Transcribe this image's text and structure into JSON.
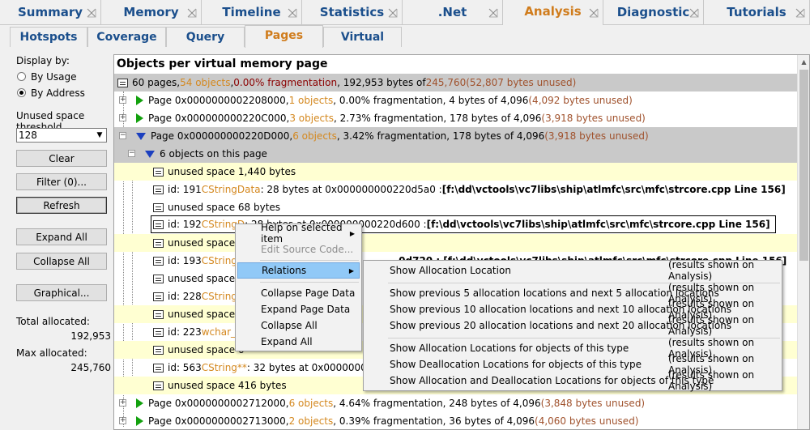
{
  "top_tabs": [
    {
      "label": "Summary",
      "active": false
    },
    {
      "label": "Memory",
      "active": false
    },
    {
      "label": "Timeline",
      "active": false
    },
    {
      "label": "Statistics",
      "active": false
    },
    {
      "label": ".Net",
      "active": false
    },
    {
      "label": "Analysis",
      "active": true
    },
    {
      "label": "Diagnostic",
      "active": false
    },
    {
      "label": "Tutorials",
      "active": false
    }
  ],
  "sub_tabs": [
    {
      "label": "Hotspots",
      "active": false
    },
    {
      "label": "Coverage",
      "active": false
    },
    {
      "label": "Query",
      "active": false
    },
    {
      "label": "Pages",
      "active": true
    },
    {
      "label": "Virtual",
      "active": false
    }
  ],
  "left": {
    "display_by_label": "Display by:",
    "radio_usage": "By Usage",
    "radio_address": "By Address",
    "selected_radio": "By Address",
    "threshold_label": "Unused space threshold",
    "threshold_value": "128",
    "clear_button": "Clear",
    "filter_button": "Filter (0)...",
    "refresh_button": "Refresh",
    "expand_all_button": "Expand All",
    "collapse_all_button": "Collapse All",
    "graphical_button": "Graphical...",
    "total_allocated_label": "Total allocated:",
    "total_allocated_value": "192,953",
    "max_allocated_label": "Max allocated:",
    "max_allocated_value": "245,760"
  },
  "main": {
    "title": "Objects per virtual memory page",
    "summary": {
      "a": "60 pages, ",
      "b": "54 objects",
      "c": ", ",
      "d": "0.00% fragmentation",
      "e": ", 192,953 bytes of ",
      "f": "245,760",
      "g": " (52,807 bytes unused)"
    },
    "page1": {
      "a": "Page 0x0000000002208000, ",
      "b": "1 objects",
      "c": ", 0.00% fragmentation, 4 bytes of 4,096 ",
      "d": "(4,092 bytes unused)"
    },
    "page2": {
      "a": "Page 0x000000000220C000, ",
      "b": "3 objects",
      "c": ", 2.73% fragmentation, 178 bytes of 4,096 ",
      "d": "(3,918 bytes unused)"
    },
    "page3": {
      "a": "Page 0x000000000220D000, ",
      "b": "6 objects",
      "c": ", 3.42% fragmentation, 178 bytes of 4,096 ",
      "d": "(3,918 bytes unused)"
    },
    "objects_on_page": "6 objects on this page",
    "r_unused1": "unused space 1,440 bytes",
    "r_id191": {
      "a": "id: 191 ",
      "b": "CStringData",
      "c": " : 28 bytes at 0x000000000220d5a0 : ",
      "d": "[f:\\dd\\vctools\\vc7libs\\ship\\atlmfc\\src\\mfc\\strcore.cpp Line 156]"
    },
    "r_unused68": "unused space 68 bytes",
    "r_id192": {
      "a": "id: 192 ",
      "b": "CStringD",
      "c": "  : 28 bytes at 0x000000000220d600 : ",
      "d": "[f:\\dd\\vctools\\vc7libs\\ship\\atlmfc\\src\\mfc\\strcore.cpp Line 156]"
    },
    "r_unused2": "unused space 2",
    "r_id193": {
      "a": "id: 193 ",
      "b": "CStringD",
      "c": "",
      "d": "0d720 : [f:\\dd\\vctools\\vc7libs\\ship\\atlmfc\\src\\mfc\\strcore.cpp Line 156]"
    },
    "r_unused6": "unused space 6",
    "r_id228": {
      "a": "id: 228 ",
      "b": "CStringD"
    },
    "r_unused1b": "unused space 1",
    "r_id223": {
      "a": "id: 223 ",
      "b": "wchar_t"
    },
    "r_unused6b": "unused space 6",
    "r_id563": {
      "a": "id: 563 ",
      "b": "CString",
      "c": " ** ",
      "d": ": 32 bytes at 0x00000000022"
    },
    "r_unused416": "unused space 416 bytes",
    "page4": {
      "a": "Page 0x0000000002712000, ",
      "b": "6 objects",
      "c": ", 4.64% fragmentation, 248 bytes of 4,096 ",
      "d": "(3,848 bytes unused)"
    },
    "page5": {
      "a": "Page 0x0000000002713000, ",
      "b": "2 objects",
      "c": ", 0.39% fragmentation, 36 bytes of 4,096 ",
      "d": "(4,060 bytes unused)"
    }
  },
  "context_menu": {
    "help": "Help on selected item",
    "edit_source": "Edit Source Code...",
    "relations": "Relations",
    "collapse_page": "Collapse Page Data",
    "expand_page": "Expand Page Data",
    "collapse_all": "Collapse All",
    "expand_all": "Expand All"
  },
  "relations_menu": {
    "results_note": "(results shown on Analysis)",
    "items": [
      "Show Allocation Location",
      "Show previous 5 allocation locations and next 5 allocation locations",
      "Show previous 10 allocation locations and next 10 allocation locations",
      "Show previous 20 allocation locations and next 20 allocation locations",
      "Show Allocation Locations for objects of this type",
      "Show Deallocation Locations for objects of this type",
      "Show Allocation and Deallocation Locations for objects of this type"
    ]
  },
  "colors": {
    "tab_text": "#1b4f8c",
    "active_tab": "#d07c1c",
    "fragmentation_highlight": "#8b0000",
    "yellow_row": "#ffffd2",
    "gray_row": "#c9c9c9"
  }
}
